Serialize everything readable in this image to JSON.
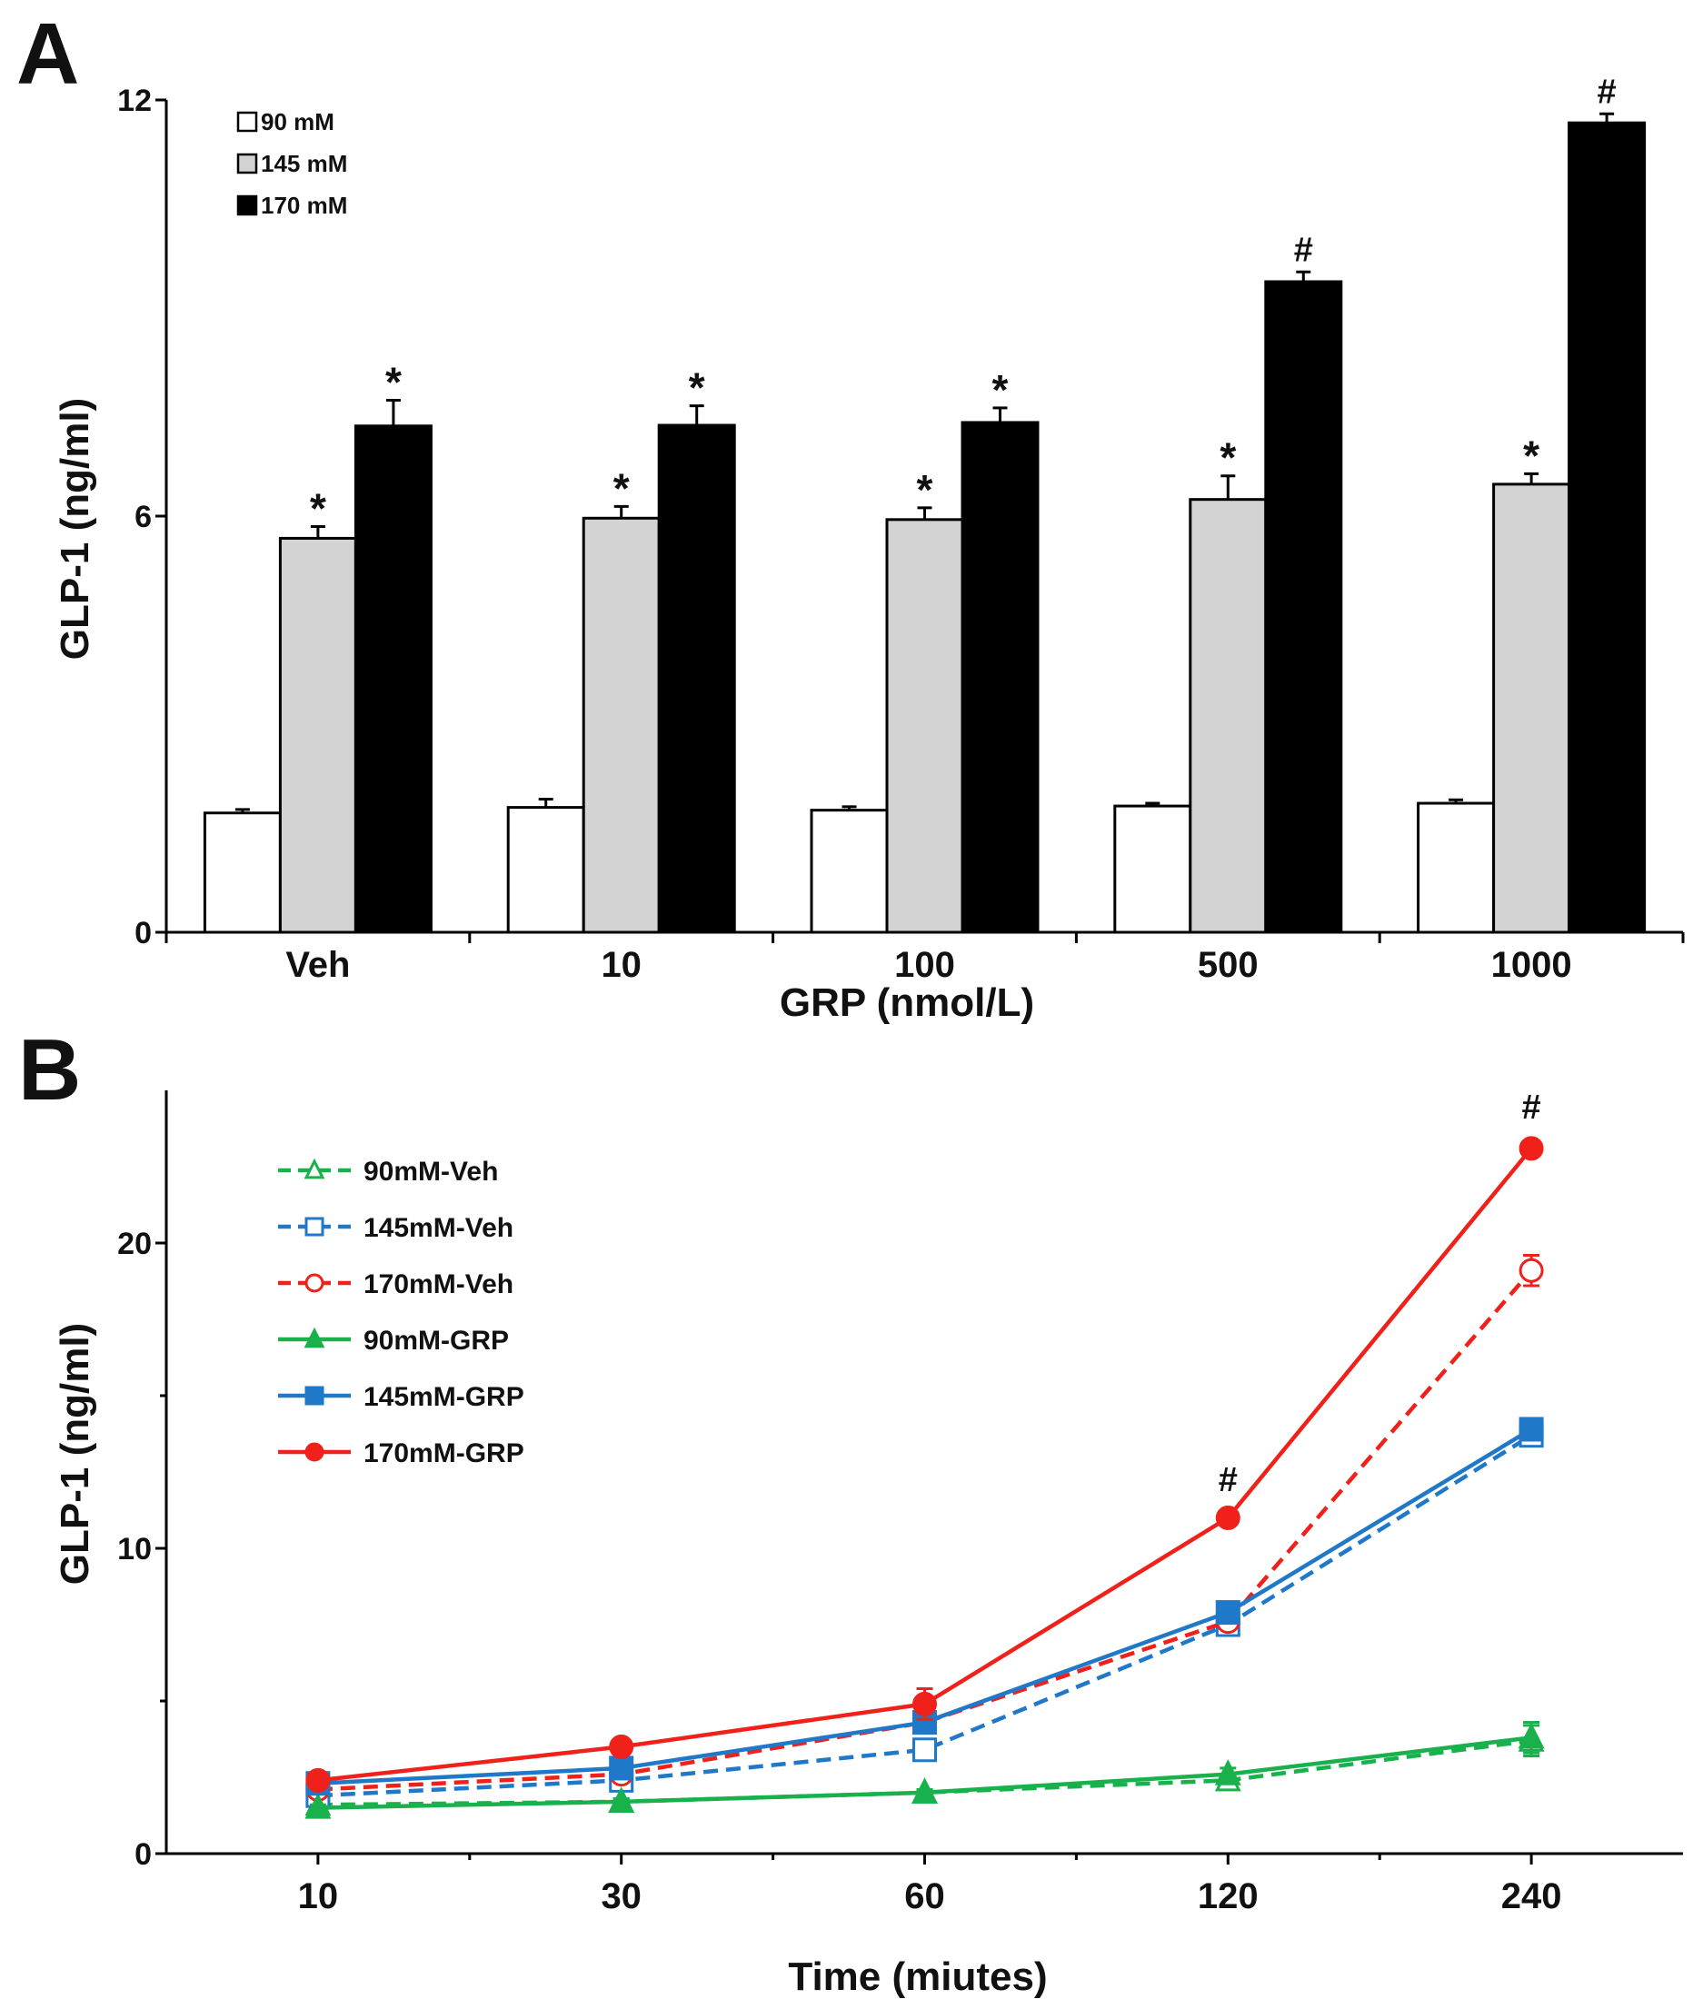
{
  "chart_data": [
    {
      "panel": "A",
      "type": "bar",
      "xlabel": "GRP (nmol/L)",
      "ylabel": "GLP-1 (ng/ml)",
      "ylim": [
        0,
        12
      ],
      "yticks": [
        0,
        6,
        12
      ],
      "categories": [
        "Veh",
        "10",
        "100",
        "500",
        "1000"
      ],
      "series": [
        {
          "name": "90 mM",
          "color": "#ffffff",
          "values": [
            1.72,
            1.8,
            1.76,
            1.82,
            1.86
          ],
          "errors": [
            0.05,
            0.12,
            0.05,
            0.04,
            0.05
          ],
          "annotations": [
            "",
            "",
            "",
            "",
            ""
          ]
        },
        {
          "name": "145 mM",
          "color": "#d3d3d3",
          "values": [
            5.68,
            5.97,
            5.95,
            6.24,
            6.46
          ],
          "errors": [
            0.17,
            0.17,
            0.17,
            0.34,
            0.15
          ],
          "annotations": [
            "*",
            "*",
            "*",
            "*",
            "*"
          ]
        },
        {
          "name": "170 mM",
          "color": "#000000",
          "values": [
            7.3,
            7.31,
            7.35,
            9.38,
            11.67
          ],
          "errors": [
            0.37,
            0.28,
            0.21,
            0.14,
            0.13
          ],
          "annotations": [
            "*",
            "*",
            "*",
            "#",
            "#"
          ]
        }
      ]
    },
    {
      "panel": "B",
      "type": "line",
      "xlabel": "Time (miutes)",
      "ylabel": "GLP-1 (ng/ml)",
      "ylim": [
        0,
        25
      ],
      "yticks": [
        0,
        10,
        20
      ],
      "categories": [
        "10",
        "30",
        "60",
        "120",
        "240"
      ],
      "series": [
        {
          "name": "90mM-Veh",
          "color": "#19b14c",
          "dash": true,
          "marker": "triangle",
          "filled": false,
          "values": [
            1.6,
            1.7,
            2.0,
            2.4,
            3.7
          ],
          "errors": [
            0.1,
            0.1,
            0.1,
            0.2,
            0.5
          ]
        },
        {
          "name": "145mM-Veh",
          "color": "#1f78c8",
          "dash": true,
          "marker": "square",
          "filled": false,
          "values": [
            1.9,
            2.4,
            3.4,
            7.5,
            13.7
          ],
          "errors": [
            0.1,
            0.2,
            0.3,
            0.3,
            0.3
          ]
        },
        {
          "name": "170mM-Veh",
          "color": "#f0201a",
          "dash": true,
          "marker": "circle",
          "filled": false,
          "values": [
            2.1,
            2.6,
            4.3,
            7.6,
            19.1
          ],
          "errors": [
            0.1,
            0.1,
            0.2,
            0.2,
            0.5
          ]
        },
        {
          "name": "90mM-GRP",
          "color": "#19b14c",
          "dash": false,
          "marker": "triangle",
          "filled": true,
          "values": [
            1.5,
            1.7,
            2.0,
            2.6,
            3.8
          ],
          "errors": [
            0.1,
            0.1,
            0.1,
            0.2,
            0.5
          ]
        },
        {
          "name": "145mM-GRP",
          "color": "#1f78c8",
          "dash": false,
          "marker": "square",
          "filled": true,
          "values": [
            2.3,
            2.8,
            4.3,
            7.9,
            13.9
          ],
          "errors": [
            0.1,
            0.1,
            0.2,
            0.2,
            0.3
          ]
        },
        {
          "name": "170mM-GRP",
          "color": "#f0201a",
          "dash": false,
          "marker": "circle",
          "filled": true,
          "values": [
            2.4,
            3.5,
            4.9,
            11.0,
            23.1
          ],
          "errors": [
            0.1,
            0.1,
            0.5,
            0.1,
            0.2
          ]
        }
      ],
      "annotations": [
        {
          "category": "120",
          "text": "#"
        },
        {
          "category": "240",
          "text": "#"
        }
      ]
    }
  ],
  "panel_labels": [
    "A",
    "B"
  ]
}
